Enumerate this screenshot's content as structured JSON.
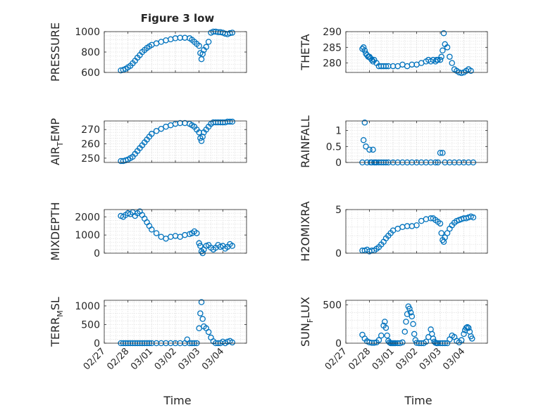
{
  "figure_title": "Figure 3 low",
  "marker_color": "#0072bd",
  "x_tick_labels": [
    "02/27",
    "02/28",
    "03/01",
    "03/02",
    "03/03",
    "03/04"
  ],
  "x_label": "Time",
  "chart_data": [
    {
      "type": "scatter",
      "ylabel": "PRESSURE",
      "ylim": [
        600,
        1000
      ],
      "yticks": [
        600,
        800,
        1000
      ],
      "xlim": [
        0,
        6
      ],
      "grid": true,
      "x": [
        0.7,
        0.8,
        0.9,
        1.0,
        1.1,
        1.2,
        1.3,
        1.4,
        1.5,
        1.6,
        1.7,
        1.8,
        1.9,
        2.0,
        2.2,
        2.4,
        2.6,
        2.8,
        3.0,
        3.2,
        3.4,
        3.6,
        3.7,
        3.8,
        3.9,
        4.0,
        4.05,
        4.1,
        4.15,
        4.2,
        4.3,
        4.4,
        4.5,
        4.6,
        4.7,
        4.8,
        4.9,
        5.0,
        5.1,
        5.2,
        5.3,
        5.4
      ],
      "y": [
        620,
        625,
        635,
        650,
        665,
        690,
        715,
        745,
        770,
        800,
        820,
        840,
        855,
        870,
        885,
        900,
        915,
        925,
        935,
        940,
        940,
        935,
        920,
        900,
        880,
        860,
        790,
        730,
        780,
        820,
        850,
        900,
        990,
        1000,
        1000,
        995,
        995,
        990,
        980,
        975,
        985,
        990
      ]
    },
    {
      "type": "scatter",
      "ylabel": "THETA",
      "ylim": [
        277,
        290
      ],
      "yticks": [
        280,
        285,
        290
      ],
      "xlim": [
        0,
        6
      ],
      "grid": true,
      "x": [
        0.7,
        0.75,
        0.8,
        0.85,
        0.9,
        0.95,
        1.0,
        1.05,
        1.1,
        1.15,
        1.2,
        1.3,
        1.4,
        1.5,
        1.6,
        1.7,
        1.8,
        2.0,
        2.2,
        2.4,
        2.6,
        2.8,
        3.0,
        3.2,
        3.4,
        3.5,
        3.6,
        3.7,
        3.8,
        3.85,
        3.9,
        4.0,
        4.05,
        4.1,
        4.15,
        4.2,
        4.3,
        4.4,
        4.5,
        4.6,
        4.7,
        4.8,
        4.9,
        5.0,
        5.1,
        5.2,
        5.3
      ],
      "y": [
        284.5,
        285,
        284,
        283,
        282.5,
        282,
        282,
        281.5,
        281,
        280.5,
        281,
        280,
        279,
        279,
        279,
        279,
        279,
        279,
        279,
        279.5,
        279,
        279.5,
        279.5,
        280,
        280.5,
        281,
        280.5,
        281,
        280.5,
        281,
        281,
        281,
        282,
        284,
        289.5,
        286,
        285,
        282,
        280,
        278,
        277.5,
        277,
        276.8,
        277,
        277.5,
        278,
        277.5
      ]
    },
    {
      "type": "scatter",
      "ylabel": "AIR_TEMP",
      "ylim": [
        247,
        276
      ],
      "yticks": [
        250,
        260,
        270
      ],
      "xlim": [
        0,
        6
      ],
      "grid": true,
      "x": [
        0.7,
        0.8,
        0.9,
        1.0,
        1.1,
        1.2,
        1.3,
        1.4,
        1.5,
        1.6,
        1.7,
        1.8,
        1.9,
        2.0,
        2.2,
        2.4,
        2.6,
        2.8,
        3.0,
        3.2,
        3.4,
        3.6,
        3.7,
        3.8,
        3.9,
        4.0,
        4.05,
        4.1,
        4.15,
        4.2,
        4.3,
        4.4,
        4.5,
        4.6,
        4.7,
        4.8,
        4.9,
        5.0,
        5.1,
        5.2,
        5.3,
        5.4
      ],
      "y": [
        248,
        248,
        248.5,
        249,
        250,
        251,
        253,
        255,
        257,
        259,
        261,
        263,
        265,
        267,
        269,
        270.5,
        272,
        273,
        274,
        274.5,
        274.5,
        274,
        273,
        272,
        270,
        268,
        264,
        262,
        265,
        268,
        270,
        272,
        274,
        275,
        275,
        275,
        275,
        275,
        275,
        275.5,
        275.5,
        275.5
      ]
    },
    {
      "type": "scatter",
      "ylabel": "RAINFALL",
      "ylim": [
        0,
        1.3
      ],
      "yticks": [
        0,
        0.5,
        1
      ],
      "xlim": [
        0,
        6
      ],
      "grid": true,
      "x": [
        0.7,
        0.75,
        0.8,
        0.85,
        0.9,
        1.0,
        1.05,
        1.1,
        1.15,
        1.2,
        1.25,
        1.3,
        1.4,
        1.5,
        1.6,
        1.7,
        1.8,
        2.0,
        2.2,
        2.4,
        2.6,
        2.8,
        3.0,
        3.2,
        3.4,
        3.6,
        3.8,
        3.9,
        4.0,
        4.1,
        4.2,
        4.4,
        4.6,
        4.8,
        5.0,
        5.2,
        5.4
      ],
      "y": [
        0,
        0.7,
        1.25,
        0.5,
        0,
        0.4,
        0,
        0,
        0.4,
        0,
        0,
        0,
        0,
        0,
        0,
        0,
        0,
        0,
        0,
        0,
        0,
        0,
        0,
        0,
        0,
        0,
        0,
        0,
        0.3,
        0.3,
        0,
        0,
        0,
        0,
        0,
        0,
        0
      ]
    },
    {
      "type": "scatter",
      "ylabel": "MIXDEPTH",
      "ylim": [
        0,
        2400
      ],
      "yticks": [
        0,
        1000,
        2000
      ],
      "xlim": [
        0,
        6
      ],
      "grid": true,
      "x": [
        0.7,
        0.8,
        0.9,
        1.0,
        1.1,
        1.2,
        1.3,
        1.4,
        1.5,
        1.6,
        1.7,
        1.8,
        1.9,
        2.0,
        2.2,
        2.4,
        2.6,
        2.8,
        3.0,
        3.2,
        3.4,
        3.6,
        3.7,
        3.8,
        3.9,
        4.0,
        4.05,
        4.1,
        4.15,
        4.2,
        4.3,
        4.4,
        4.5,
        4.6,
        4.7,
        4.8,
        4.9,
        5.0,
        5.1,
        5.2,
        5.3,
        5.4
      ],
      "y": [
        2050,
        2000,
        2100,
        2200,
        2150,
        2250,
        2050,
        2200,
        2300,
        2100,
        1900,
        1700,
        1500,
        1300,
        1100,
        900,
        800,
        900,
        950,
        900,
        1000,
        1050,
        1100,
        1200,
        1100,
        550,
        400,
        100,
        0,
        200,
        400,
        450,
        300,
        200,
        300,
        450,
        350,
        400,
        250,
        350,
        500,
        400
      ]
    },
    {
      "type": "scatter",
      "ylabel": "H2OMIXRA",
      "ylim": [
        0,
        5
      ],
      "yticks": [
        0,
        5
      ],
      "xlim": [
        0,
        6
      ],
      "grid": true,
      "x": [
        0.7,
        0.8,
        0.9,
        1.0,
        1.1,
        1.2,
        1.3,
        1.4,
        1.5,
        1.6,
        1.7,
        1.8,
        1.9,
        2.0,
        2.2,
        2.4,
        2.6,
        2.8,
        3.0,
        3.2,
        3.4,
        3.6,
        3.7,
        3.8,
        3.9,
        4.0,
        4.05,
        4.1,
        4.15,
        4.2,
        4.3,
        4.4,
        4.5,
        4.6,
        4.7,
        4.8,
        4.9,
        5.0,
        5.1,
        5.2,
        5.3,
        5.4
      ],
      "y": [
        0.3,
        0.3,
        0.4,
        0.2,
        0.3,
        0.3,
        0.5,
        0.7,
        1.0,
        1.3,
        1.7,
        2.0,
        2.3,
        2.6,
        2.8,
        3.0,
        3.1,
        3.1,
        3.2,
        3.7,
        3.9,
        4.0,
        4.0,
        3.8,
        3.6,
        3.4,
        2.3,
        1.5,
        1.3,
        1.8,
        2.3,
        2.8,
        3.2,
        3.5,
        3.7,
        3.8,
        3.9,
        4.0,
        4.0,
        4.1,
        4.2,
        4.1
      ]
    },
    {
      "type": "scatter",
      "ylabel": "TERR_MSL",
      "ylim": [
        0,
        1150
      ],
      "yticks": [
        0,
        500,
        1000
      ],
      "xlim": [
        0,
        6
      ],
      "grid": true,
      "x": [
        0.7,
        0.8,
        0.9,
        1.0,
        1.1,
        1.2,
        1.3,
        1.4,
        1.5,
        1.6,
        1.7,
        1.8,
        1.9,
        2.0,
        2.2,
        2.4,
        2.6,
        2.8,
        3.0,
        3.2,
        3.4,
        3.5,
        3.6,
        3.7,
        3.8,
        3.9,
        4.0,
        4.05,
        4.1,
        4.15,
        4.2,
        4.3,
        4.4,
        4.5,
        4.6,
        4.7,
        4.8,
        4.9,
        5.0,
        5.1,
        5.2,
        5.3,
        5.4
      ],
      "y": [
        0,
        0,
        0,
        0,
        0,
        0,
        0,
        0,
        0,
        0,
        0,
        0,
        0,
        0,
        0,
        0,
        0,
        0,
        0,
        0,
        0,
        100,
        0,
        0,
        0,
        0,
        400,
        800,
        1100,
        650,
        450,
        400,
        300,
        150,
        50,
        0,
        0,
        0,
        40,
        0,
        40,
        60,
        20
      ]
    },
    {
      "type": "scatter",
      "ylabel": "SUN_FLUX",
      "ylim": [
        0,
        560
      ],
      "yticks": [
        0,
        500
      ],
      "xlim": [
        0,
        6
      ],
      "grid": true,
      "x": [
        0.7,
        0.8,
        0.9,
        1.0,
        1.1,
        1.2,
        1.3,
        1.4,
        1.5,
        1.6,
        1.65,
        1.7,
        1.75,
        1.8,
        1.85,
        1.9,
        1.95,
        2.0,
        2.05,
        2.1,
        2.2,
        2.3,
        2.4,
        2.5,
        2.55,
        2.6,
        2.65,
        2.7,
        2.75,
        2.8,
        2.85,
        2.9,
        2.95,
        3.0,
        3.1,
        3.2,
        3.3,
        3.4,
        3.5,
        3.6,
        3.65,
        3.7,
        3.75,
        3.8,
        3.85,
        3.9,
        4.0,
        4.1,
        4.2,
        4.3,
        4.4,
        4.5,
        4.6,
        4.7,
        4.8,
        4.9,
        5.0,
        5.05,
        5.1,
        5.15,
        5.2,
        5.25,
        5.3,
        5.35
      ],
      "y": [
        110,
        60,
        25,
        10,
        5,
        5,
        10,
        40,
        100,
        230,
        280,
        200,
        100,
        30,
        10,
        0,
        0,
        0,
        0,
        0,
        0,
        0,
        10,
        150,
        280,
        380,
        480,
        450,
        400,
        350,
        250,
        120,
        40,
        5,
        0,
        0,
        0,
        20,
        80,
        180,
        120,
        60,
        20,
        5,
        0,
        0,
        0,
        0,
        0,
        0,
        50,
        100,
        80,
        30,
        10,
        40,
        120,
        170,
        200,
        210,
        200,
        150,
        90,
        60
      ]
    }
  ]
}
